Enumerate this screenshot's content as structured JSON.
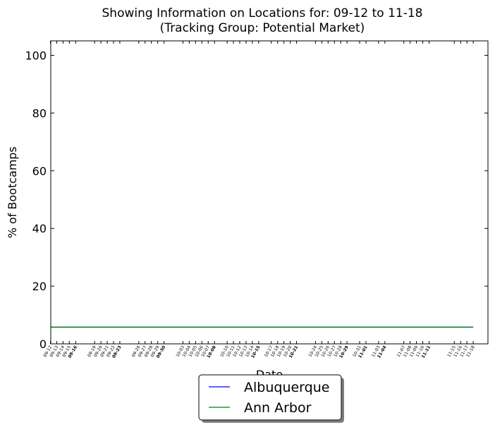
{
  "chart_data": {
    "type": "line",
    "title_line1": "Showing Information on Locations for: 09-12 to 11-18",
    "title_line2": "(Tracking Group: Potential Market)",
    "xlabel": "Date",
    "ylabel": "% of Bootcamps",
    "ylim": [
      0,
      105
    ],
    "yticks": [
      0,
      20,
      40,
      60,
      80,
      100
    ],
    "x_start": "09-12",
    "x_end": "11-18",
    "x": [
      "09-12",
      "09-13",
      "09-14",
      "09-15",
      "09-16",
      "09-19",
      "09-20",
      "09-21",
      "09-22",
      "09-23",
      "09-26",
      "09-27",
      "09-28",
      "09-29",
      "09-30",
      "10-03",
      "10-04",
      "10-05",
      "10-06",
      "10-07",
      "10-08",
      "10-10",
      "10-11",
      "10-12",
      "10-13",
      "10-14",
      "10-15",
      "10-17",
      "10-18",
      "10-19",
      "10-20",
      "10-21",
      "10-24",
      "10-25",
      "10-26",
      "10-27",
      "10-28",
      "10-29",
      "10-31",
      "11-01",
      "11-03",
      "11-04",
      "11-07",
      "11-08",
      "11-09",
      "11-10",
      "11-11",
      "11-15",
      "11-16",
      "11-17",
      "11-18"
    ],
    "bold_ticks": [
      "09-16",
      "09-23",
      "09-30",
      "10-08",
      "10-15",
      "10-21",
      "10-29",
      "11-01",
      "11-04",
      "11-11"
    ],
    "series": [
      {
        "name": "Albuquerque",
        "color": "#0000ff",
        "value": 5.8
      },
      {
        "name": "Ann Arbor",
        "color": "#008000",
        "value": 5.8
      }
    ],
    "grid": false,
    "legend_position": "bottom-center"
  }
}
